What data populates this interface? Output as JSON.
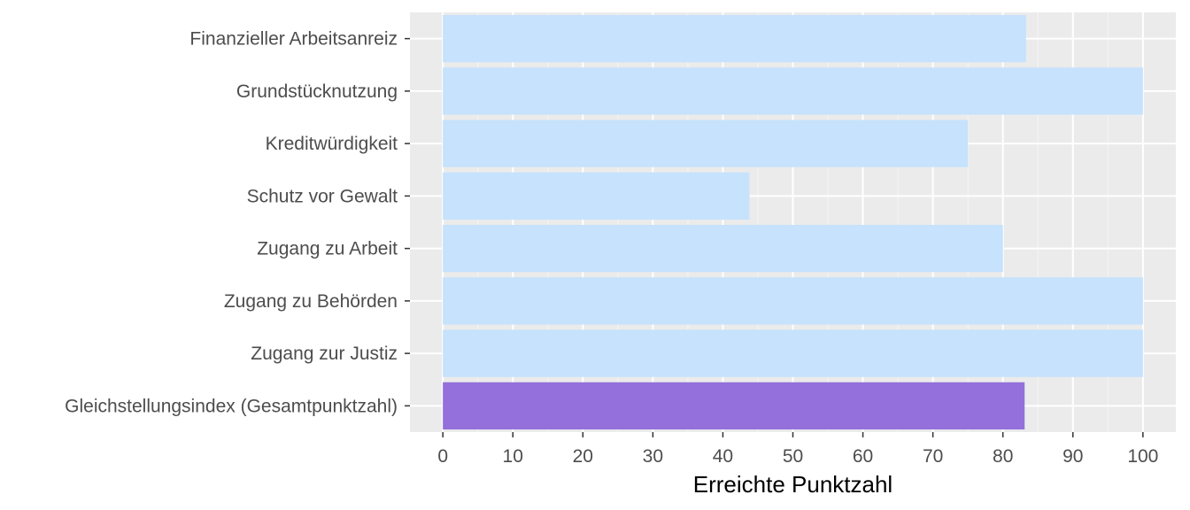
{
  "chart_data": {
    "type": "bar",
    "orientation": "horizontal",
    "categories": [
      "Finanzieller Arbeitsanreiz",
      "Grundstücknutzung",
      "Kreditwürdigkeit",
      "Schutz vor Gewalt",
      "Zugang zu Arbeit",
      "Zugang zu Behörden",
      "Zugang zur Justiz",
      "Gleichstellungsindex (Gesamtpunktzahl)"
    ],
    "values": [
      83.3,
      100,
      75,
      43.8,
      80,
      100,
      100,
      83.1
    ],
    "highlight_index": 7,
    "xlabel": "Erreichte Punktzahl",
    "ylabel": "",
    "xlim": [
      -4.7,
      104.7
    ],
    "xticks": [
      0,
      10,
      20,
      30,
      40,
      50,
      60,
      70,
      80,
      90,
      100
    ],
    "grid": true,
    "legend": "none"
  },
  "colors": {
    "bar": "#c6e2fc",
    "highlight": "#9370db",
    "panel": "#ebebeb",
    "grid_major": "#ffffff",
    "grid_minor": "#f5f5f5",
    "tick": "#333333"
  }
}
